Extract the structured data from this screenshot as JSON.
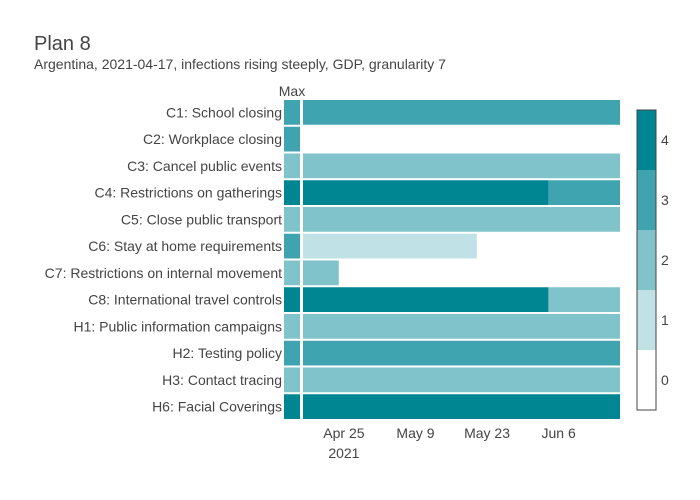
{
  "chart_data": {
    "type": "heatmap",
    "title": "Plan 8",
    "subtitle": "Argentina, 2021-04-17, infections rising steeply, GDP, granularity 7",
    "max_column_label": "Max",
    "x_start": "2021-04-17",
    "x_end": "2021-06-18",
    "x_ticks": [
      {
        "date": "2021-04-25",
        "label": "Apr 25",
        "sublabel": "2021"
      },
      {
        "date": "2021-05-09",
        "label": "May 9",
        "sublabel": ""
      },
      {
        "date": "2021-05-23",
        "label": "May 23",
        "sublabel": ""
      },
      {
        "date": "2021-06-06",
        "label": "Jun 6",
        "sublabel": ""
      }
    ],
    "colorscale": {
      "min": 0,
      "max": 4,
      "colors": [
        "#ffffff",
        "#c0e2e6",
        "#80c3cb",
        "#40a4b0",
        "#008592"
      ],
      "tick_labels": [
        "0",
        "1",
        "2",
        "3",
        "4"
      ]
    },
    "rows": [
      {
        "label": "C1: School closing",
        "max": 3,
        "segments": [
          {
            "start": "2021-04-17",
            "end": "2021-06-18",
            "value": 3
          }
        ]
      },
      {
        "label": "C2: Workplace closing",
        "max": 3,
        "segments": []
      },
      {
        "label": "C3: Cancel public events",
        "max": 2,
        "segments": [
          {
            "start": "2021-04-17",
            "end": "2021-06-18",
            "value": 2
          }
        ]
      },
      {
        "label": "C4: Restrictions on gatherings",
        "max": 4,
        "segments": [
          {
            "start": "2021-04-17",
            "end": "2021-06-04",
            "value": 4
          },
          {
            "start": "2021-06-04",
            "end": "2021-06-18",
            "value": 3
          }
        ]
      },
      {
        "label": "C5: Close public transport",
        "max": 2,
        "segments": [
          {
            "start": "2021-04-17",
            "end": "2021-06-18",
            "value": 2
          }
        ]
      },
      {
        "label": "C6: Stay at home requirements",
        "max": 3,
        "segments": [
          {
            "start": "2021-04-17",
            "end": "2021-05-21",
            "value": 1
          }
        ]
      },
      {
        "label": "C7: Restrictions on internal movement",
        "max": 2,
        "segments": [
          {
            "start": "2021-04-17",
            "end": "2021-04-24",
            "value": 2
          }
        ]
      },
      {
        "label": "C8: International travel controls",
        "max": 4,
        "segments": [
          {
            "start": "2021-04-17",
            "end": "2021-06-04",
            "value": 4
          },
          {
            "start": "2021-06-04",
            "end": "2021-06-18",
            "value": 2
          }
        ]
      },
      {
        "label": "H1: Public information campaigns",
        "max": 2,
        "segments": [
          {
            "start": "2021-04-17",
            "end": "2021-06-18",
            "value": 2
          }
        ]
      },
      {
        "label": "H2: Testing policy",
        "max": 3,
        "segments": [
          {
            "start": "2021-04-17",
            "end": "2021-06-18",
            "value": 3
          }
        ]
      },
      {
        "label": "H3: Contact tracing",
        "max": 2,
        "segments": [
          {
            "start": "2021-04-17",
            "end": "2021-06-18",
            "value": 2
          }
        ]
      },
      {
        "label": "H6: Facial Coverings",
        "max": 4,
        "segments": [
          {
            "start": "2021-04-17",
            "end": "2021-06-18",
            "value": 4
          }
        ]
      }
    ]
  }
}
